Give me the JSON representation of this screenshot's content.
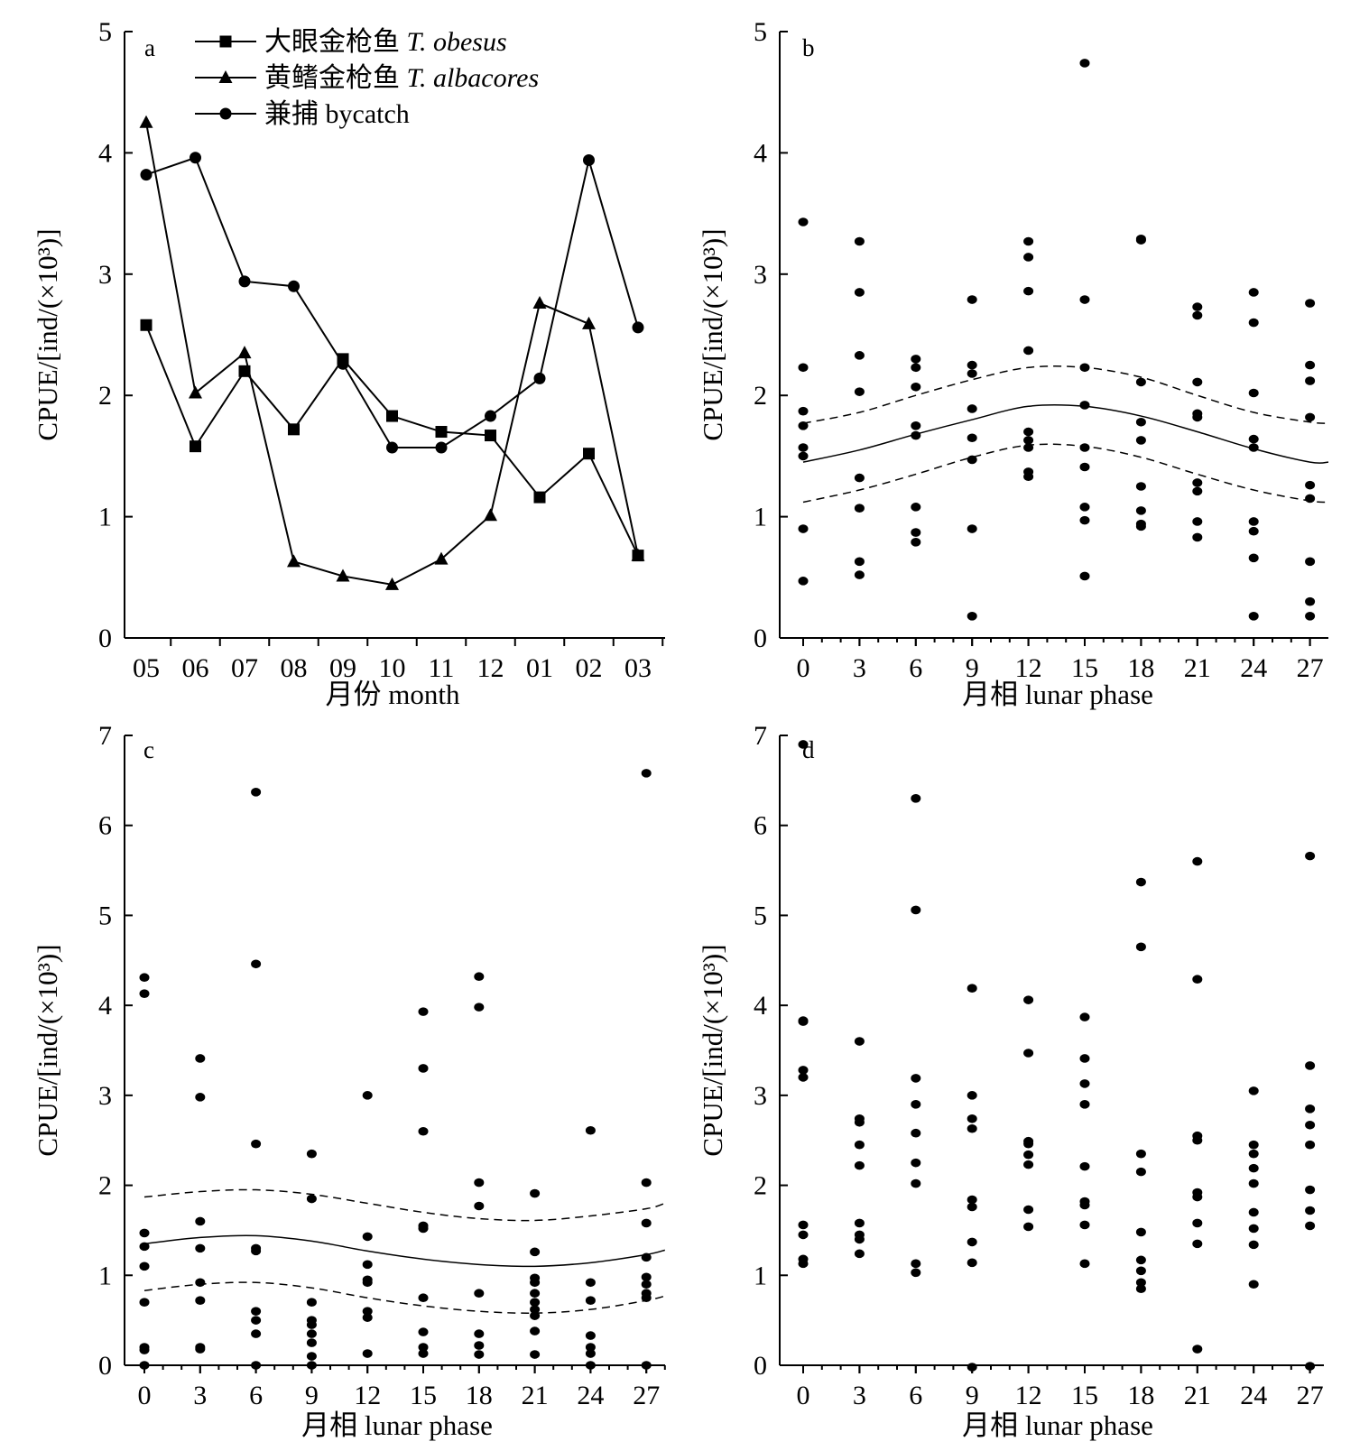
{
  "chart_data": [
    {
      "panel": "a",
      "type": "line",
      "xlabel": "月份 month",
      "ylabel": "CPUE/[ind/(×10³)]",
      "ylim": [
        0,
        5
      ],
      "yticks": [
        0,
        1,
        2,
        3,
        4,
        5
      ],
      "categories": [
        "05",
        "06",
        "07",
        "08",
        "09",
        "10",
        "11",
        "12",
        "01",
        "02",
        "03"
      ],
      "legend_position": "top-left",
      "series": [
        {
          "name_cn": "大眼金枪鱼",
          "name_latin": "T. obesus",
          "marker": "square",
          "values": [
            2.58,
            1.58,
            2.2,
            1.72,
            2.3,
            1.83,
            1.7,
            1.67,
            1.16,
            1.52,
            0.68
          ]
        },
        {
          "name_cn": "黄鳍金枪鱼",
          "name_latin": "T. albacores",
          "marker": "triangle",
          "values": [
            4.25,
            2.02,
            2.35,
            0.63,
            0.51,
            0.44,
            0.65,
            1.01,
            2.76,
            2.59,
            0.68
          ]
        },
        {
          "name_cn": "兼捕",
          "name_latin": "bycatch",
          "marker": "circle",
          "values": [
            3.82,
            3.96,
            2.94,
            2.9,
            2.26,
            1.57,
            1.57,
            1.83,
            2.14,
            3.94,
            2.56
          ]
        }
      ]
    },
    {
      "panel": "b",
      "type": "scatter",
      "xlabel": "月相 lunar phase",
      "ylabel": "CPUE/[ind/(×10³)]",
      "ylim": [
        0,
        5
      ],
      "yticks": [
        0,
        1,
        2,
        3,
        4,
        5
      ],
      "xticks": [
        0,
        3,
        6,
        9,
        12,
        15,
        18,
        21,
        24,
        27
      ],
      "points": [
        [
          0,
          3.43
        ],
        [
          0,
          2.23
        ],
        [
          0,
          1.87
        ],
        [
          0,
          1.75
        ],
        [
          0,
          1.57
        ],
        [
          0,
          1.5
        ],
        [
          0,
          0.9
        ],
        [
          0,
          0.47
        ],
        [
          3,
          3.27
        ],
        [
          3,
          2.85
        ],
        [
          3,
          2.33
        ],
        [
          3,
          2.03
        ],
        [
          3,
          1.32
        ],
        [
          3,
          1.07
        ],
        [
          3,
          0.63
        ],
        [
          3,
          0.52
        ],
        [
          6,
          2.3
        ],
        [
          6,
          2.23
        ],
        [
          6,
          2.07
        ],
        [
          6,
          1.75
        ],
        [
          6,
          1.67
        ],
        [
          6,
          1.08
        ],
        [
          6,
          0.87
        ],
        [
          6,
          0.79
        ],
        [
          9,
          2.79
        ],
        [
          9,
          2.25
        ],
        [
          9,
          2.18
        ],
        [
          9,
          1.89
        ],
        [
          9,
          1.65
        ],
        [
          9,
          1.47
        ],
        [
          9,
          0.9
        ],
        [
          9,
          0.18
        ],
        [
          12,
          3.27
        ],
        [
          12,
          3.14
        ],
        [
          12,
          2.86
        ],
        [
          12,
          2.37
        ],
        [
          12,
          1.7
        ],
        [
          12,
          1.63
        ],
        [
          12,
          1.57
        ],
        [
          12,
          1.37
        ],
        [
          12,
          1.33
        ],
        [
          15,
          4.74
        ],
        [
          15,
          2.79
        ],
        [
          15,
          2.23
        ],
        [
          15,
          1.92
        ],
        [
          15,
          1.57
        ],
        [
          15,
          1.41
        ],
        [
          15,
          1.08
        ],
        [
          15,
          0.97
        ],
        [
          15,
          0.51
        ],
        [
          18,
          3.29
        ],
        [
          18,
          3.28
        ],
        [
          18,
          2.11
        ],
        [
          18,
          1.78
        ],
        [
          18,
          1.63
        ],
        [
          18,
          1.25
        ],
        [
          18,
          1.05
        ],
        [
          18,
          0.94
        ],
        [
          18,
          0.92
        ],
        [
          21,
          2.73
        ],
        [
          21,
          2.66
        ],
        [
          21,
          2.11
        ],
        [
          21,
          1.85
        ],
        [
          21,
          1.82
        ],
        [
          21,
          1.28
        ],
        [
          21,
          1.21
        ],
        [
          21,
          0.96
        ],
        [
          21,
          0.83
        ],
        [
          24,
          2.85
        ],
        [
          24,
          2.6
        ],
        [
          24,
          2.02
        ],
        [
          24,
          1.64
        ],
        [
          24,
          1.57
        ],
        [
          24,
          0.96
        ],
        [
          24,
          0.88
        ],
        [
          24,
          0.66
        ],
        [
          24,
          0.18
        ],
        [
          27,
          2.76
        ],
        [
          27,
          2.25
        ],
        [
          27,
          2.12
        ],
        [
          27,
          1.82
        ],
        [
          27,
          1.26
        ],
        [
          27,
          1.15
        ],
        [
          27,
          0.63
        ],
        [
          27,
          0.3
        ],
        [
          27,
          0.18
        ]
      ],
      "fit_line": {
        "x": [
          0,
          3,
          6,
          9,
          12,
          15,
          18,
          21,
          24,
          27,
          28
        ],
        "y": [
          1.45,
          1.55,
          1.68,
          1.8,
          1.91,
          1.91,
          1.83,
          1.7,
          1.56,
          1.45,
          1.45
        ]
      },
      "ci_upper": {
        "x": [
          0,
          3,
          6,
          9,
          12,
          15,
          18,
          21,
          24,
          27,
          28
        ],
        "y": [
          1.77,
          1.86,
          2.0,
          2.13,
          2.23,
          2.23,
          2.15,
          2.0,
          1.86,
          1.78,
          1.77
        ]
      },
      "ci_lower": {
        "x": [
          0,
          3,
          6,
          9,
          12,
          15,
          18,
          21,
          24,
          27,
          28
        ],
        "y": [
          1.12,
          1.22,
          1.35,
          1.49,
          1.59,
          1.58,
          1.49,
          1.35,
          1.22,
          1.13,
          1.12
        ]
      }
    },
    {
      "panel": "c",
      "type": "scatter",
      "xlabel": "月相 lunar phase",
      "ylabel": "CPUE/[ind/(×10³)]",
      "ylim": [
        0,
        7
      ],
      "yticks": [
        0,
        1,
        2,
        3,
        4,
        5,
        6,
        7
      ],
      "xticks": [
        0,
        3,
        6,
        9,
        12,
        15,
        18,
        21,
        24,
        27
      ],
      "points": [
        [
          0,
          4.31
        ],
        [
          0,
          4.13
        ],
        [
          0,
          1.47
        ],
        [
          0,
          1.32
        ],
        [
          0,
          1.1
        ],
        [
          0,
          0.7
        ],
        [
          0,
          0.2
        ],
        [
          0,
          0.17
        ],
        [
          0,
          0.0
        ],
        [
          3,
          3.41
        ],
        [
          3,
          2.98
        ],
        [
          3,
          1.6
        ],
        [
          3,
          1.3
        ],
        [
          3,
          0.92
        ],
        [
          3,
          0.72
        ],
        [
          3,
          0.2
        ],
        [
          3,
          0.18
        ],
        [
          6,
          6.37
        ],
        [
          6,
          4.46
        ],
        [
          6,
          2.46
        ],
        [
          6,
          1.3
        ],
        [
          6,
          1.27
        ],
        [
          6,
          0.6
        ],
        [
          6,
          0.5
        ],
        [
          6,
          0.35
        ],
        [
          6,
          0.0
        ],
        [
          9,
          2.35
        ],
        [
          9,
          1.85
        ],
        [
          9,
          0.7
        ],
        [
          9,
          0.5
        ],
        [
          9,
          0.45
        ],
        [
          9,
          0.35
        ],
        [
          9,
          0.25
        ],
        [
          9,
          0.1
        ],
        [
          9,
          0.0
        ],
        [
          12,
          3.0
        ],
        [
          12,
          1.43
        ],
        [
          12,
          1.12
        ],
        [
          12,
          0.95
        ],
        [
          12,
          0.92
        ],
        [
          12,
          0.6
        ],
        [
          12,
          0.53
        ],
        [
          12,
          0.13
        ],
        [
          15,
          3.93
        ],
        [
          15,
          3.3
        ],
        [
          15,
          2.6
        ],
        [
          15,
          1.55
        ],
        [
          15,
          1.52
        ],
        [
          15,
          0.75
        ],
        [
          15,
          0.37
        ],
        [
          15,
          0.2
        ],
        [
          15,
          0.13
        ],
        [
          18,
          4.32
        ],
        [
          18,
          3.98
        ],
        [
          18,
          2.03
        ],
        [
          18,
          1.77
        ],
        [
          18,
          0.8
        ],
        [
          18,
          0.35
        ],
        [
          18,
          0.22
        ],
        [
          18,
          0.12
        ],
        [
          21,
          1.91
        ],
        [
          21,
          1.26
        ],
        [
          21,
          0.97
        ],
        [
          21,
          0.92
        ],
        [
          21,
          0.8
        ],
        [
          21,
          0.7
        ],
        [
          21,
          0.62
        ],
        [
          21,
          0.55
        ],
        [
          21,
          0.38
        ],
        [
          21,
          0.12
        ],
        [
          24,
          2.61
        ],
        [
          24,
          0.92
        ],
        [
          24,
          0.72
        ],
        [
          24,
          0.33
        ],
        [
          24,
          0.2
        ],
        [
          24,
          0.13
        ],
        [
          24,
          0.0
        ],
        [
          27,
          6.58
        ],
        [
          27,
          2.03
        ],
        [
          27,
          1.58
        ],
        [
          27,
          1.2
        ],
        [
          27,
          0.98
        ],
        [
          27,
          0.9
        ],
        [
          27,
          0.8
        ],
        [
          27,
          0.75
        ],
        [
          27,
          0.0
        ]
      ],
      "fit_line": {
        "x": [
          0,
          3,
          6,
          9,
          12,
          15,
          18,
          21,
          24,
          27,
          28
        ],
        "y": [
          1.35,
          1.42,
          1.44,
          1.38,
          1.27,
          1.18,
          1.12,
          1.1,
          1.14,
          1.23,
          1.28
        ]
      },
      "ci_upper": {
        "x": [
          0,
          3,
          6,
          9,
          12,
          15,
          18,
          21,
          24,
          27,
          28
        ],
        "y": [
          1.87,
          1.93,
          1.95,
          1.9,
          1.8,
          1.7,
          1.63,
          1.61,
          1.66,
          1.74,
          1.8
        ]
      },
      "ci_lower": {
        "x": [
          0,
          3,
          6,
          9,
          12,
          15,
          18,
          21,
          24,
          27,
          28
        ],
        "y": [
          0.83,
          0.9,
          0.92,
          0.86,
          0.75,
          0.66,
          0.6,
          0.58,
          0.62,
          0.72,
          0.77
        ]
      }
    },
    {
      "panel": "d",
      "type": "scatter",
      "xlabel": "月相 lunar phase",
      "ylabel": "CPUE/[ind/(×10³)]",
      "ylim": [
        0,
        7
      ],
      "yticks": [
        0,
        1,
        2,
        3,
        4,
        5,
        6,
        7
      ],
      "xticks": [
        0,
        3,
        6,
        9,
        12,
        15,
        18,
        21,
        24,
        27
      ],
      "points": [
        [
          0,
          6.9
        ],
        [
          0,
          3.83
        ],
        [
          0,
          3.82
        ],
        [
          0,
          3.28
        ],
        [
          0,
          3.2
        ],
        [
          0,
          1.56
        ],
        [
          0,
          1.45
        ],
        [
          0,
          1.18
        ],
        [
          0,
          1.13
        ],
        [
          3,
          3.6
        ],
        [
          3,
          2.74
        ],
        [
          3,
          2.7
        ],
        [
          3,
          2.45
        ],
        [
          3,
          2.22
        ],
        [
          3,
          1.58
        ],
        [
          3,
          1.45
        ],
        [
          3,
          1.4
        ],
        [
          3,
          1.24
        ],
        [
          6,
          6.3
        ],
        [
          6,
          5.06
        ],
        [
          6,
          3.19
        ],
        [
          6,
          2.9
        ],
        [
          6,
          2.58
        ],
        [
          6,
          2.25
        ],
        [
          6,
          2.02
        ],
        [
          6,
          1.13
        ],
        [
          6,
          1.03
        ],
        [
          9,
          4.19
        ],
        [
          9,
          3.0
        ],
        [
          9,
          2.74
        ],
        [
          9,
          2.63
        ],
        [
          9,
          1.84
        ],
        [
          9,
          1.76
        ],
        [
          9,
          1.37
        ],
        [
          9,
          1.14
        ],
        [
          9,
          -0.02
        ],
        [
          12,
          4.06
        ],
        [
          12,
          3.47
        ],
        [
          12,
          2.49
        ],
        [
          12,
          2.46
        ],
        [
          12,
          2.34
        ],
        [
          12,
          2.23
        ],
        [
          12,
          1.73
        ],
        [
          12,
          1.54
        ],
        [
          15,
          3.87
        ],
        [
          15,
          3.41
        ],
        [
          15,
          3.13
        ],
        [
          15,
          2.9
        ],
        [
          15,
          2.21
        ],
        [
          15,
          1.82
        ],
        [
          15,
          1.78
        ],
        [
          15,
          1.56
        ],
        [
          15,
          1.13
        ],
        [
          18,
          5.37
        ],
        [
          18,
          4.65
        ],
        [
          18,
          2.35
        ],
        [
          18,
          2.15
        ],
        [
          18,
          1.48
        ],
        [
          18,
          1.17
        ],
        [
          18,
          1.05
        ],
        [
          18,
          0.92
        ],
        [
          18,
          0.85
        ],
        [
          21,
          5.6
        ],
        [
          21,
          4.29
        ],
        [
          21,
          2.55
        ],
        [
          21,
          2.5
        ],
        [
          21,
          1.92
        ],
        [
          21,
          1.87
        ],
        [
          21,
          1.58
        ],
        [
          21,
          1.35
        ],
        [
          21,
          0.18
        ],
        [
          24,
          3.05
        ],
        [
          24,
          2.45
        ],
        [
          24,
          2.35
        ],
        [
          24,
          2.19
        ],
        [
          24,
          2.02
        ],
        [
          24,
          1.7
        ],
        [
          24,
          1.52
        ],
        [
          24,
          1.34
        ],
        [
          24,
          0.9
        ],
        [
          27,
          5.66
        ],
        [
          27,
          3.33
        ],
        [
          27,
          2.85
        ],
        [
          27,
          2.67
        ],
        [
          27,
          2.45
        ],
        [
          27,
          1.95
        ],
        [
          27,
          1.72
        ],
        [
          27,
          1.55
        ],
        [
          27,
          -0.01
        ]
      ]
    }
  ]
}
